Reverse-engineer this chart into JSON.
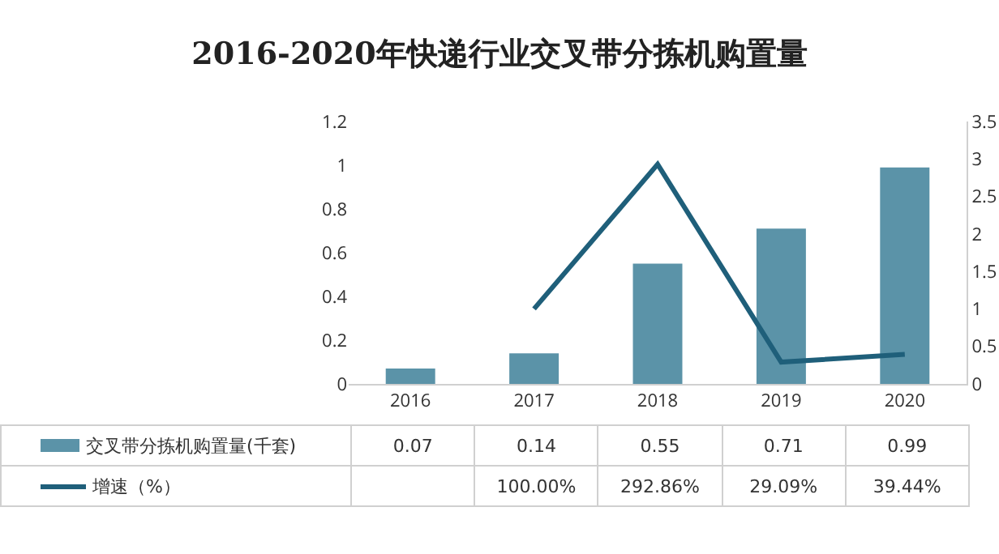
{
  "chart_data": {
    "type": "bar",
    "title": "2016-2020年快递行业交叉带分拣机购置量",
    "categories": [
      "2016",
      "2017",
      "2018",
      "2019",
      "2020"
    ],
    "series": [
      {
        "name": "交叉带分拣机购置量(千套)",
        "color": "#5b93a8",
        "values": [
          0.07,
          0.14,
          0.55,
          0.71,
          0.99
        ],
        "value_labels": [
          "0.07",
          "0.14",
          "0.55",
          "0.71",
          "0.99"
        ]
      },
      {
        "type": "line",
        "name": "增速（%）",
        "color": "#1f5f7a",
        "axis": "y2",
        "values": [
          null,
          1.0,
          2.9286,
          0.2909,
          0.3944
        ],
        "value_labels": [
          null,
          "100.00%",
          "292.86%",
          "29.09%",
          "39.44%"
        ]
      }
    ],
    "ylim": [
      0,
      1.2
    ],
    "yticks": [
      0,
      0.2,
      0.4,
      0.6,
      0.8,
      1,
      1.2
    ],
    "y2lim": [
      0,
      3.5
    ],
    "y2ticks": [
      0,
      0.5,
      1,
      1.5,
      2,
      2.5,
      3,
      3.5
    ],
    "legend": "bottom",
    "grid": false
  }
}
